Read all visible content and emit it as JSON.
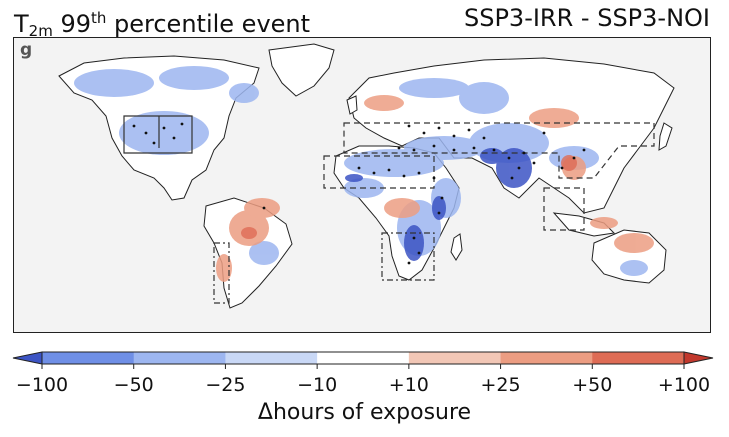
{
  "title": {
    "left_main": "T",
    "left_sub": "2m",
    "left_mid": " 99",
    "left_sup": "th",
    "left_end": " percentile event",
    "right": "SSP3-IRR - SSP3-NOI"
  },
  "panel_label": "g",
  "colorbar": {
    "label": "Δhours of exposure",
    "ticks": [
      "−100",
      "−50",
      "−25",
      "−10",
      "+10",
      "+25",
      "+50",
      "+100"
    ],
    "colors": [
      "#6f8fe6",
      "#9db6f0",
      "#c9d8f6",
      "#ffffff",
      "#f2c7b6",
      "#ec9d82",
      "#de6c55"
    ],
    "min_color": "#3c54c4",
    "max_color": "#c2382d"
  },
  "map": {
    "ocean_color": "#f3f3f3",
    "land_color": "#ffffff",
    "stipple_color": "#111111"
  }
}
